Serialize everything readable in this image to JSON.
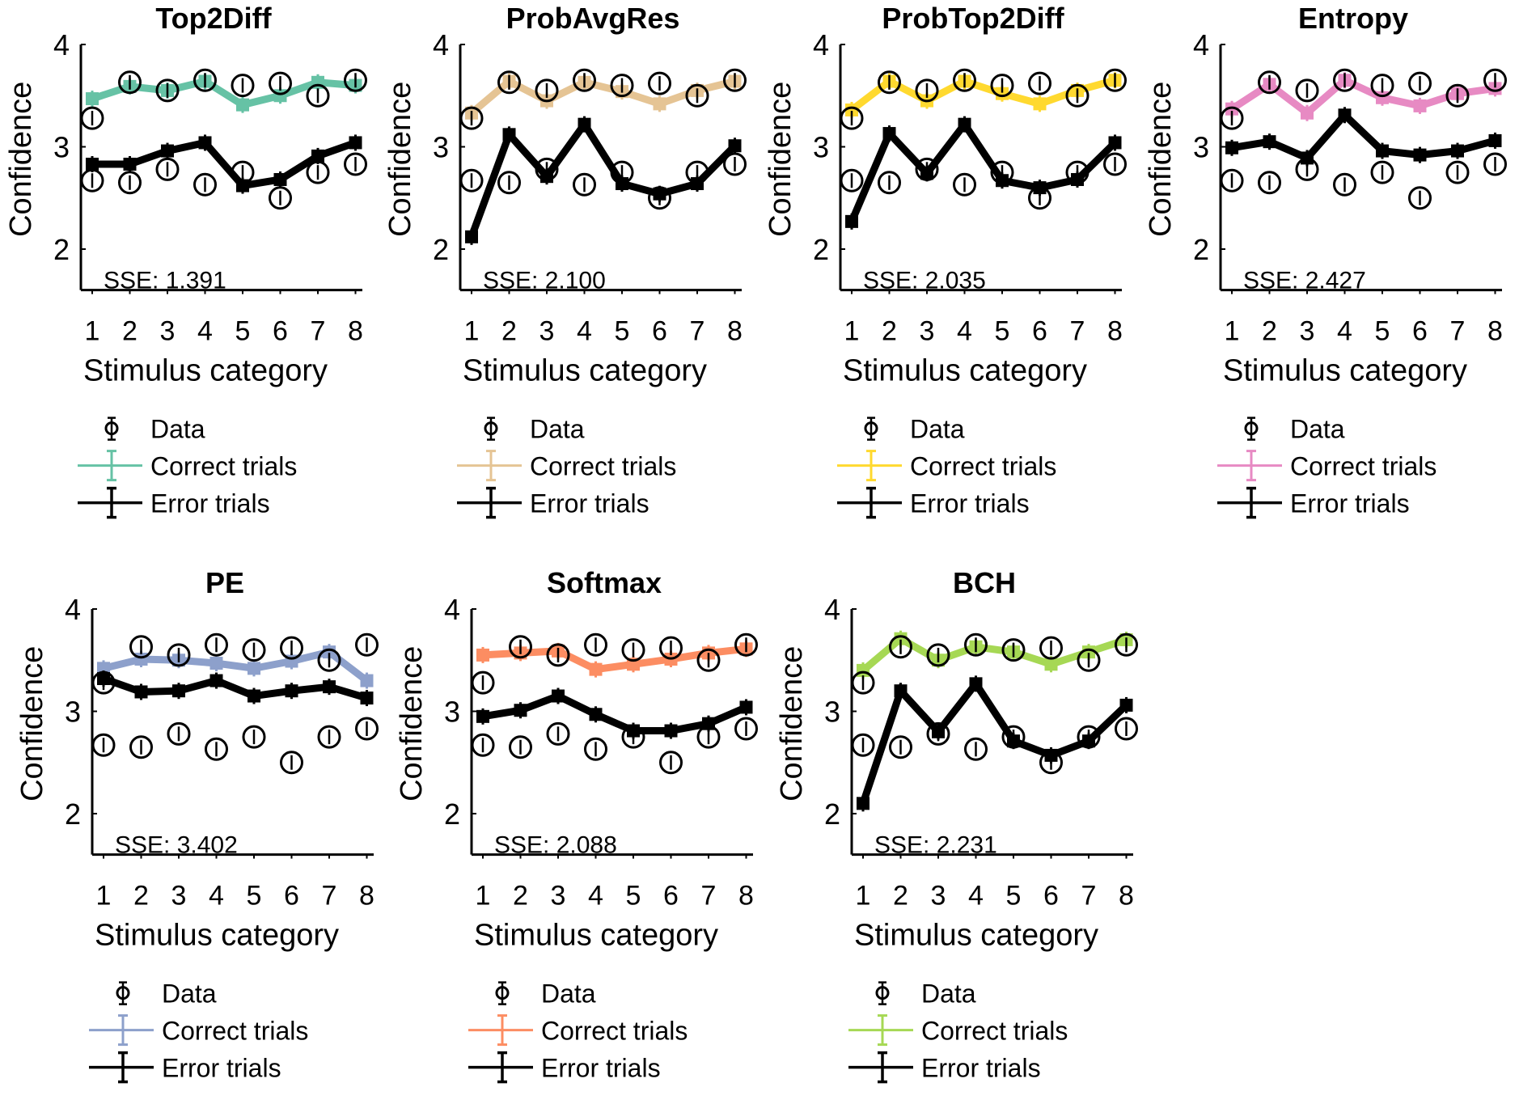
{
  "chart_data": [
    {
      "type": "line",
      "title": "Top2Diff",
      "xlabel": "Stimulus category",
      "ylabel": "Confidence",
      "categories": [
        "1",
        "2",
        "3",
        "4",
        "5",
        "6",
        "7",
        "8"
      ],
      "yticks": [
        "2",
        "3",
        "4"
      ],
      "ylim": [
        1.6,
        4
      ],
      "grid": false,
      "annotation": "SSE: 1.391",
      "model_color": "#66c2a5",
      "series": [
        {
          "name": "Data (correct)",
          "kind": "data",
          "values": [
            3.28,
            3.63,
            3.55,
            3.65,
            3.6,
            3.62,
            3.5,
            3.65
          ]
        },
        {
          "name": "Data (error)",
          "kind": "data",
          "values": [
            2.67,
            2.65,
            2.78,
            2.63,
            2.75,
            2.5,
            2.75,
            2.83
          ]
        },
        {
          "name": "Correct trials",
          "kind": "correct",
          "values": [
            3.47,
            3.59,
            3.55,
            3.64,
            3.41,
            3.5,
            3.63,
            3.6
          ]
        },
        {
          "name": "Error trials",
          "kind": "error",
          "values": [
            2.83,
            2.83,
            2.96,
            3.04,
            2.62,
            2.68,
            2.91,
            3.04
          ]
        }
      ],
      "legend": [
        "Data",
        "Correct trials",
        "Error trials"
      ],
      "legend_position": "below"
    },
    {
      "type": "line",
      "title": "ProbAvgRes",
      "xlabel": "Stimulus category",
      "ylabel": "Confidence",
      "categories": [
        "1",
        "2",
        "3",
        "4",
        "5",
        "6",
        "7",
        "8"
      ],
      "yticks": [
        "2",
        "3",
        "4"
      ],
      "ylim": [
        1.6,
        4
      ],
      "grid": false,
      "annotation": "SSE: 2.100",
      "model_color": "#e5c494",
      "series": [
        {
          "name": "Data (correct)",
          "kind": "data",
          "values": [
            3.28,
            3.63,
            3.55,
            3.65,
            3.6,
            3.62,
            3.5,
            3.65
          ]
        },
        {
          "name": "Data (error)",
          "kind": "data",
          "values": [
            2.67,
            2.65,
            2.78,
            2.63,
            2.75,
            2.5,
            2.75,
            2.83
          ]
        },
        {
          "name": "Correct trials",
          "kind": "correct",
          "values": [
            3.33,
            3.64,
            3.45,
            3.63,
            3.54,
            3.42,
            3.55,
            3.64
          ]
        },
        {
          "name": "Error trials",
          "kind": "error",
          "values": [
            2.12,
            3.12,
            2.71,
            3.22,
            2.64,
            2.54,
            2.64,
            3.01
          ]
        }
      ],
      "legend": [
        "Data",
        "Correct trials",
        "Error trials"
      ],
      "legend_position": "below"
    },
    {
      "type": "line",
      "title": "ProbTop2Diff",
      "xlabel": "Stimulus category",
      "ylabel": "Confidence",
      "categories": [
        "1",
        "2",
        "3",
        "4",
        "5",
        "6",
        "7",
        "8"
      ],
      "yticks": [
        "2",
        "3",
        "4"
      ],
      "ylim": [
        1.6,
        4
      ],
      "grid": false,
      "annotation": "SSE: 2.035",
      "model_color": "#ffd92f",
      "series": [
        {
          "name": "Data (correct)",
          "kind": "data",
          "values": [
            3.28,
            3.63,
            3.55,
            3.65,
            3.6,
            3.62,
            3.5,
            3.65
          ]
        },
        {
          "name": "Data (error)",
          "kind": "data",
          "values": [
            2.67,
            2.65,
            2.78,
            2.63,
            2.75,
            2.5,
            2.75,
            2.83
          ]
        },
        {
          "name": "Correct trials",
          "kind": "correct",
          "values": [
            3.36,
            3.64,
            3.45,
            3.64,
            3.52,
            3.42,
            3.55,
            3.65
          ]
        },
        {
          "name": "Error trials",
          "kind": "error",
          "values": [
            2.27,
            3.13,
            2.74,
            3.22,
            2.67,
            2.6,
            2.68,
            3.04
          ]
        }
      ],
      "legend": [
        "Data",
        "Correct trials",
        "Error trials"
      ],
      "legend_position": "below"
    },
    {
      "type": "line",
      "title": "Entropy",
      "xlabel": "Stimulus category",
      "ylabel": "Confidence",
      "categories": [
        "1",
        "2",
        "3",
        "4",
        "5",
        "6",
        "7",
        "8"
      ],
      "yticks": [
        "2",
        "3",
        "4"
      ],
      "ylim": [
        1.6,
        4
      ],
      "grid": false,
      "annotation": "SSE: 2.427",
      "model_color": "#e78ac3",
      "series": [
        {
          "name": "Data (correct)",
          "kind": "data",
          "values": [
            3.28,
            3.63,
            3.55,
            3.65,
            3.6,
            3.62,
            3.5,
            3.65
          ]
        },
        {
          "name": "Data (error)",
          "kind": "data",
          "values": [
            2.67,
            2.65,
            2.78,
            2.63,
            2.75,
            2.5,
            2.75,
            2.83
          ]
        },
        {
          "name": "Correct trials",
          "kind": "correct",
          "values": [
            3.37,
            3.61,
            3.33,
            3.65,
            3.48,
            3.4,
            3.52,
            3.57
          ]
        },
        {
          "name": "Error trials",
          "kind": "error",
          "values": [
            2.99,
            3.05,
            2.89,
            3.31,
            2.96,
            2.92,
            2.96,
            3.06
          ]
        }
      ],
      "legend": [
        "Data",
        "Correct trials",
        "Error trials"
      ],
      "legend_position": "below"
    },
    {
      "type": "line",
      "title": "PE",
      "xlabel": "Stimulus category",
      "ylabel": "Confidence",
      "categories": [
        "1",
        "2",
        "3",
        "4",
        "5",
        "6",
        "7",
        "8"
      ],
      "yticks": [
        "2",
        "3",
        "4"
      ],
      "ylim": [
        1.6,
        4
      ],
      "grid": false,
      "annotation": "SSE: 3.402",
      "model_color": "#8da0cb",
      "series": [
        {
          "name": "Data (correct)",
          "kind": "data",
          "values": [
            3.28,
            3.63,
            3.55,
            3.65,
            3.6,
            3.62,
            3.5,
            3.65
          ]
        },
        {
          "name": "Data (error)",
          "kind": "data",
          "values": [
            2.67,
            2.65,
            2.78,
            2.63,
            2.75,
            2.5,
            2.75,
            2.83
          ]
        },
        {
          "name": "Correct trials",
          "kind": "correct",
          "values": [
            3.42,
            3.51,
            3.5,
            3.47,
            3.42,
            3.49,
            3.58,
            3.3
          ]
        },
        {
          "name": "Error trials",
          "kind": "error",
          "values": [
            3.32,
            3.19,
            3.2,
            3.3,
            3.15,
            3.2,
            3.24,
            3.13
          ]
        }
      ],
      "legend": [
        "Data",
        "Correct trials",
        "Error trials"
      ],
      "legend_position": "below"
    },
    {
      "type": "line",
      "title": "Softmax",
      "xlabel": "Stimulus category",
      "ylabel": "Confidence",
      "categories": [
        "1",
        "2",
        "3",
        "4",
        "5",
        "6",
        "7",
        "8"
      ],
      "yticks": [
        "2",
        "3",
        "4"
      ],
      "ylim": [
        1.6,
        4
      ],
      "grid": false,
      "annotation": "SSE: 2.088",
      "model_color": "#fc8d62",
      "series": [
        {
          "name": "Data (correct)",
          "kind": "data",
          "values": [
            3.28,
            3.63,
            3.55,
            3.65,
            3.6,
            3.62,
            3.5,
            3.65
          ]
        },
        {
          "name": "Data (error)",
          "kind": "data",
          "values": [
            2.67,
            2.65,
            2.78,
            2.63,
            2.75,
            2.5,
            2.75,
            2.83
          ]
        },
        {
          "name": "Correct trials",
          "kind": "correct",
          "values": [
            3.55,
            3.57,
            3.59,
            3.41,
            3.46,
            3.51,
            3.57,
            3.61
          ]
        },
        {
          "name": "Error trials",
          "kind": "error",
          "values": [
            2.95,
            3.01,
            3.15,
            2.97,
            2.81,
            2.81,
            2.88,
            3.04
          ]
        }
      ],
      "legend": [
        "Data",
        "Correct trials",
        "Error trials"
      ],
      "legend_position": "below"
    },
    {
      "type": "line",
      "title": "BCH",
      "xlabel": "Stimulus category",
      "ylabel": "Confidence",
      "categories": [
        "1",
        "2",
        "3",
        "4",
        "5",
        "6",
        "7",
        "8"
      ],
      "yticks": [
        "2",
        "3",
        "4"
      ],
      "ylim": [
        1.6,
        4
      ],
      "grid": false,
      "annotation": "SSE: 2.231",
      "model_color": "#a6d854",
      "series": [
        {
          "name": "Data (correct)",
          "kind": "data",
          "values": [
            3.28,
            3.63,
            3.55,
            3.65,
            3.6,
            3.62,
            3.5,
            3.65
          ]
        },
        {
          "name": "Data (error)",
          "kind": "data",
          "values": [
            2.67,
            2.65,
            2.78,
            2.63,
            2.75,
            2.5,
            2.75,
            2.83
          ]
        },
        {
          "name": "Correct trials",
          "kind": "correct",
          "values": [
            3.4,
            3.71,
            3.5,
            3.63,
            3.58,
            3.46,
            3.58,
            3.7
          ]
        },
        {
          "name": "Error trials",
          "kind": "error",
          "values": [
            2.1,
            3.2,
            2.8,
            3.27,
            2.71,
            2.57,
            2.71,
            3.06
          ]
        }
      ],
      "legend": [
        "Data",
        "Correct trials",
        "Error trials"
      ],
      "legend_position": "below"
    }
  ]
}
